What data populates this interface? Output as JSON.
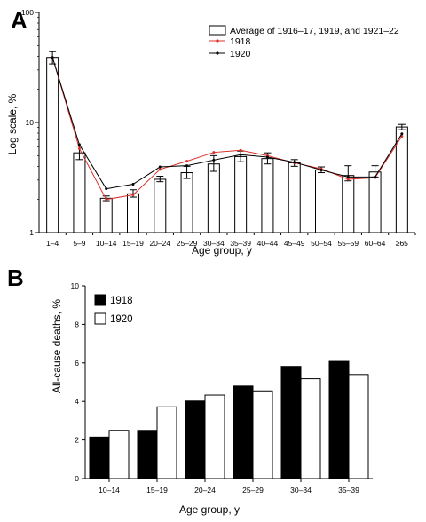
{
  "chart_data": [
    {
      "panel": "A",
      "type": "bar",
      "categories": [
        "1–4",
        "5–9",
        "10–14",
        "15–19",
        "20–24",
        "25–29",
        "30–34",
        "35–39",
        "40–44",
        "45–49",
        "50–54",
        "55–59",
        "60–64",
        "≥65"
      ],
      "y_scale": "log",
      "ylim": [
        1,
        100
      ],
      "yticks": [
        {
          "value": 1,
          "label": "1"
        },
        {
          "value": 10,
          "label": "10"
        },
        {
          "value": 100,
          "label": "100"
        }
      ],
      "xlabel": "Age group, y",
      "ylabel": "Log scale, %",
      "legend_position": "top-right",
      "bars": {
        "name": "Average of 1916–17, 1919, and 1921–22",
        "values": [
          39,
          5.3,
          2.05,
          2.25,
          3.05,
          3.5,
          4.2,
          4.9,
          4.7,
          4.3,
          3.7,
          3.3,
          3.55,
          9.1
        ],
        "error": [
          [
            34,
            44
          ],
          [
            4.6,
            6.1
          ],
          [
            1.95,
            2.15
          ],
          [
            2.1,
            2.45
          ],
          [
            2.9,
            3.25
          ],
          [
            3.1,
            4.0
          ],
          [
            3.6,
            5.0
          ],
          [
            4.4,
            5.5
          ],
          [
            4.2,
            5.3
          ],
          [
            4.0,
            4.6
          ],
          [
            3.5,
            3.95
          ],
          [
            2.95,
            4.05
          ],
          [
            3.2,
            4.05
          ],
          [
            8.6,
            9.6
          ]
        ]
      },
      "series": [
        {
          "name": "1918",
          "color": "#d9302a",
          "values": [
            39,
            5.8,
            2.0,
            2.2,
            3.75,
            4.45,
            5.35,
            5.6,
            5.0,
            4.3,
            3.8,
            3.05,
            3.15,
            7.5
          ]
        },
        {
          "name": "1920",
          "color": "#000000",
          "values": [
            39,
            6.3,
            2.5,
            2.75,
            3.95,
            4.05,
            4.55,
            5.1,
            4.85,
            4.35,
            3.7,
            3.2,
            3.2,
            7.9
          ]
        }
      ]
    },
    {
      "panel": "B",
      "type": "bar",
      "categories": [
        "10–14",
        "15–19",
        "20–24",
        "25–29",
        "30–34",
        "35–39"
      ],
      "xlabel": "Age group, y",
      "ylabel": "All-cause deaths, %",
      "ylim": [
        0,
        10
      ],
      "yticks": [
        0,
        2,
        4,
        6,
        8,
        10
      ],
      "grid": false,
      "legend_position": "top-left",
      "series": [
        {
          "name": "1918",
          "fill": "#000000",
          "values": [
            2.15,
            2.5,
            4.02,
            4.8,
            5.82,
            6.08
          ]
        },
        {
          "name": "1920",
          "fill": "#ffffff",
          "values": [
            2.5,
            3.72,
            4.33,
            4.55,
            5.18,
            5.4
          ]
        }
      ]
    }
  ]
}
